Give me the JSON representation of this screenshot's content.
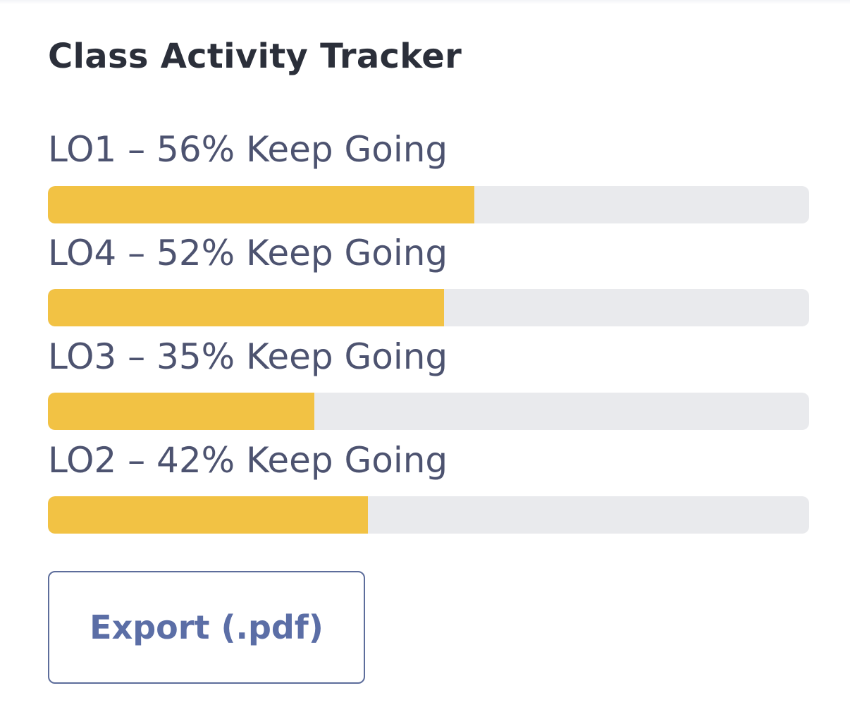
{
  "tracker": {
    "title": "Class Activity Tracker",
    "items": [
      {
        "label": "LO1 – 56% Keep Going",
        "progress_percent": 56
      },
      {
        "label": "LO4 – 52% Keep Going",
        "progress_percent": 52
      },
      {
        "label": "LO3 – 35% Keep Going",
        "progress_percent": 35
      },
      {
        "label": "LO2 – 42% Keep Going",
        "progress_percent": 42
      }
    ],
    "export_label": "Export (.pdf)"
  },
  "colors": {
    "fill": "#f2c244",
    "track": "#e9eaed",
    "button_accent": "#5b6ea6"
  }
}
